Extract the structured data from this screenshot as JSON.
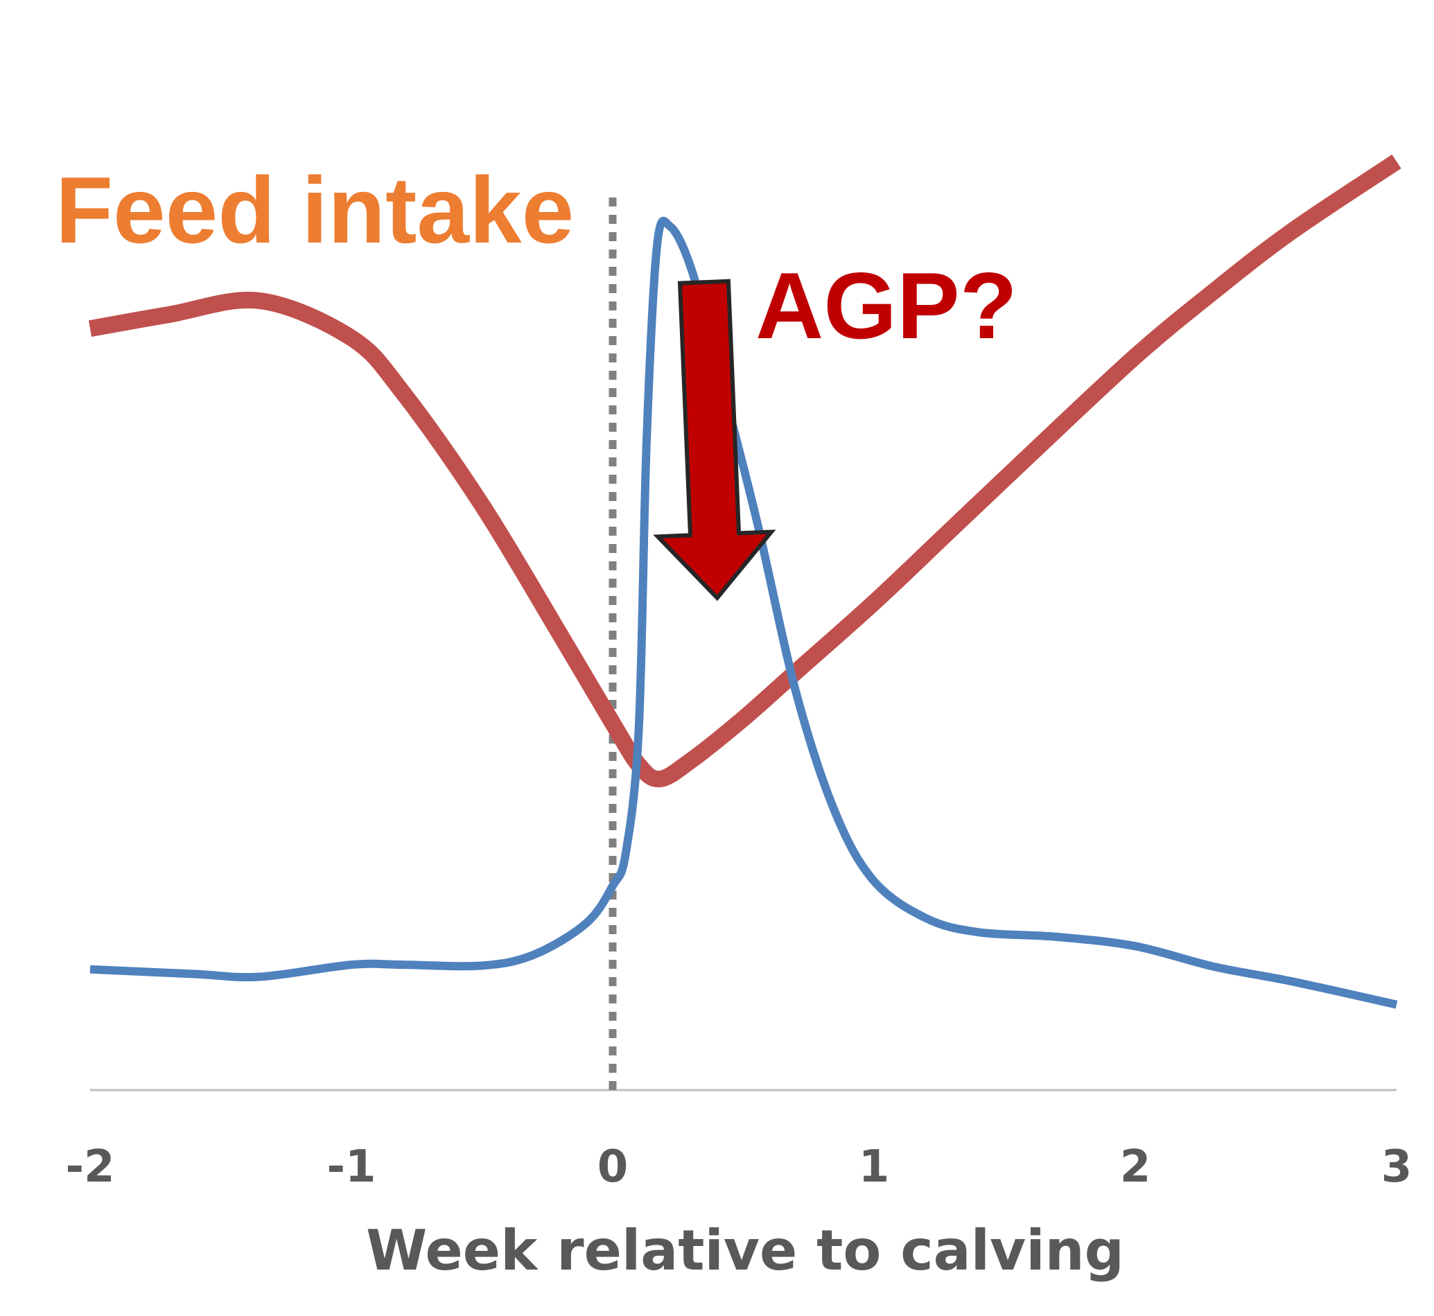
{
  "chart_data": {
    "type": "line",
    "title": "",
    "xlabel": "Week relative to calving",
    "ylabel": "",
    "xlim": [
      -2,
      3
    ],
    "ylim": [
      0,
      100
    ],
    "x_ticks": [
      "-2",
      "-1",
      "0",
      "1",
      "2",
      "3"
    ],
    "y_ticks_shown": false,
    "grid": false,
    "legend": "none",
    "reference_lines": [
      {
        "type": "vertical",
        "x": 0,
        "style": "dotted",
        "color": "#808080"
      }
    ],
    "series": [
      {
        "color": "#c0504d",
        "x": [
          -2,
          -1.7,
          -1.35,
          -1,
          -0.8,
          -0.5,
          -0.2,
          0,
          0.1,
          0.18,
          0.3,
          0.5,
          0.7,
          1,
          1.3,
          1.6,
          2,
          2.3,
          2.6,
          3
        ],
        "y": [
          82,
          83.5,
          85,
          81,
          75,
          63,
          49,
          39.5,
          35,
          33.5,
          35.5,
          40,
          45,
          52.5,
          60.5,
          68.5,
          79,
          86,
          92.5,
          100
        ]
      },
      {
        "color": "#4f81bd",
        "x": [
          -2,
          -1.6,
          -1.35,
          -1,
          -0.8,
          -0.5,
          -0.3,
          -0.1,
          0,
          0.05,
          0.1,
          0.13,
          0.17,
          0.22,
          0.3,
          0.4,
          0.55,
          0.7,
          0.85,
          1,
          1.2,
          1.4,
          1.7,
          2,
          2.3,
          2.6,
          3
        ],
        "y": [
          13,
          12.5,
          12.2,
          13.5,
          13.5,
          13.4,
          14.6,
          18,
          22,
          25.5,
          39,
          70,
          91,
          93,
          88.5,
          78,
          61.5,
          43,
          30,
          22.5,
          18.5,
          17,
          16.5,
          15.5,
          13.3,
          11.7,
          9.2
        ]
      }
    ],
    "annotations": [
      {
        "text": "Feed intake",
        "color": "#ed7d31"
      },
      {
        "text": "AGP?",
        "color": "#c00000"
      }
    ],
    "arrow": {
      "from": [
        0.35,
        87
      ],
      "to": [
        0.4,
        53
      ],
      "fill": "#c00000",
      "stroke": "#262626"
    }
  }
}
